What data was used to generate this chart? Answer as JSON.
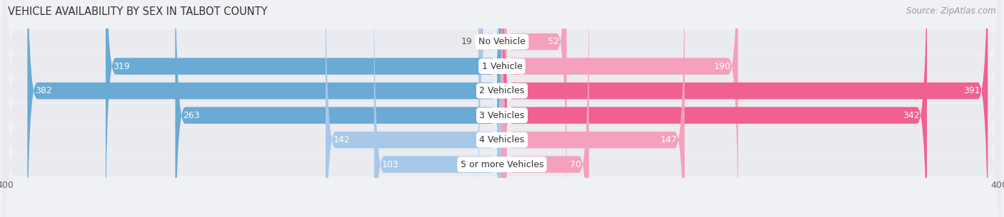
{
  "title": "VEHICLE AVAILABILITY BY SEX IN TALBOT COUNTY",
  "source": "Source: ZipAtlas.com",
  "categories": [
    "No Vehicle",
    "1 Vehicle",
    "2 Vehicles",
    "3 Vehicles",
    "4 Vehicles",
    "5 or more Vehicles"
  ],
  "male_values": [
    19,
    319,
    382,
    263,
    142,
    103
  ],
  "female_values": [
    52,
    190,
    391,
    342,
    147,
    70
  ],
  "male_color_light": "#a8c8e8",
  "male_color_dark": "#6aaad4",
  "female_color_light": "#f5a0bc",
  "female_color_dark": "#f06090",
  "row_bg_color": "#eaebf0",
  "axis_limit": 400,
  "title_fontsize": 10.5,
  "source_fontsize": 8.5,
  "tick_fontsize": 9,
  "label_fontsize": 9,
  "cat_fontsize": 9,
  "figsize": [
    14.06,
    3.05
  ],
  "dpi": 100
}
